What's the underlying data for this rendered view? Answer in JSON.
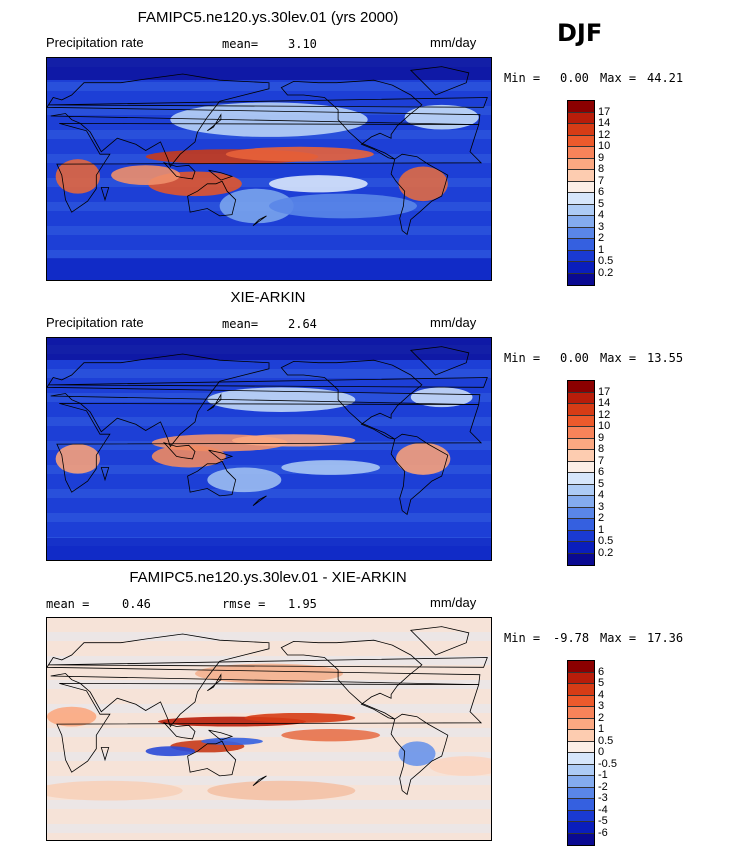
{
  "season": "DJF",
  "panels": [
    {
      "title": "FAMIPC5.ne120.ys.30lev.01 (yrs 2000)",
      "left_label": "Precipitation rate",
      "stat_label": "mean=",
      "stat_value": "3.10",
      "units": "mm/day",
      "min_label": "Min =",
      "min_value": "0.00",
      "max_label": "Max =",
      "max_value": "44.21",
      "colorbar": {
        "levels": [
          "17",
          "14",
          "12",
          "10",
          "9",
          "8",
          "7",
          "6",
          "5",
          "4",
          "3",
          "2",
          "1",
          "0.5",
          "0.2"
        ],
        "colors": [
          "#8b0000",
          "#b81d0a",
          "#d63c16",
          "#ec5a2c",
          "#f7835a",
          "#fba882",
          "#fdccb0",
          "#fbeee6",
          "#d6e6fb",
          "#adcbf5",
          "#84abee",
          "#5a86e8",
          "#3560e0",
          "#1a3ad2",
          "#0a1ebc",
          "#0a0a92"
        ]
      }
    },
    {
      "title": "XIE-ARKIN",
      "left_label": "Precipitation rate",
      "stat_label": "mean=",
      "stat_value": "2.64",
      "units": "mm/day",
      "min_label": "Min =",
      "min_value": "0.00",
      "max_label": "Max =",
      "max_value": "13.55",
      "colorbar": {
        "levels": [
          "17",
          "14",
          "12",
          "10",
          "9",
          "8",
          "7",
          "6",
          "5",
          "4",
          "3",
          "2",
          "1",
          "0.5",
          "0.2"
        ],
        "colors": [
          "#8b0000",
          "#b81d0a",
          "#d63c16",
          "#ec5a2c",
          "#f7835a",
          "#fba882",
          "#fdccb0",
          "#fbeee6",
          "#d6e6fb",
          "#adcbf5",
          "#84abee",
          "#5a86e8",
          "#3560e0",
          "#1a3ad2",
          "#0a1ebc",
          "#0a0a92"
        ]
      }
    },
    {
      "title": "FAMIPC5.ne120.ys.30lev.01 - XIE-ARKIN",
      "left_label": "mean =",
      "left_value": "0.46",
      "stat_label": "rmse =",
      "stat_value": "1.95",
      "units": "mm/day",
      "min_label": "Min =",
      "min_value": "-9.78",
      "max_label": "Max =",
      "max_value": "17.36",
      "colorbar": {
        "levels": [
          "6",
          "5",
          "4",
          "3",
          "2",
          "1",
          "0.5",
          "0",
          "-0.5",
          "-1",
          "-2",
          "-3",
          "-4",
          "-5",
          "-6"
        ],
        "colors": [
          "#8b0000",
          "#b81d0a",
          "#d63c16",
          "#ec5a2c",
          "#f7835a",
          "#fba882",
          "#fdccb0",
          "#fbeee6",
          "#d6e6fb",
          "#adcbf5",
          "#84abee",
          "#5a86e8",
          "#3560e0",
          "#1a3ad2",
          "#0a1ebc",
          "#0a0a92"
        ]
      }
    }
  ]
}
